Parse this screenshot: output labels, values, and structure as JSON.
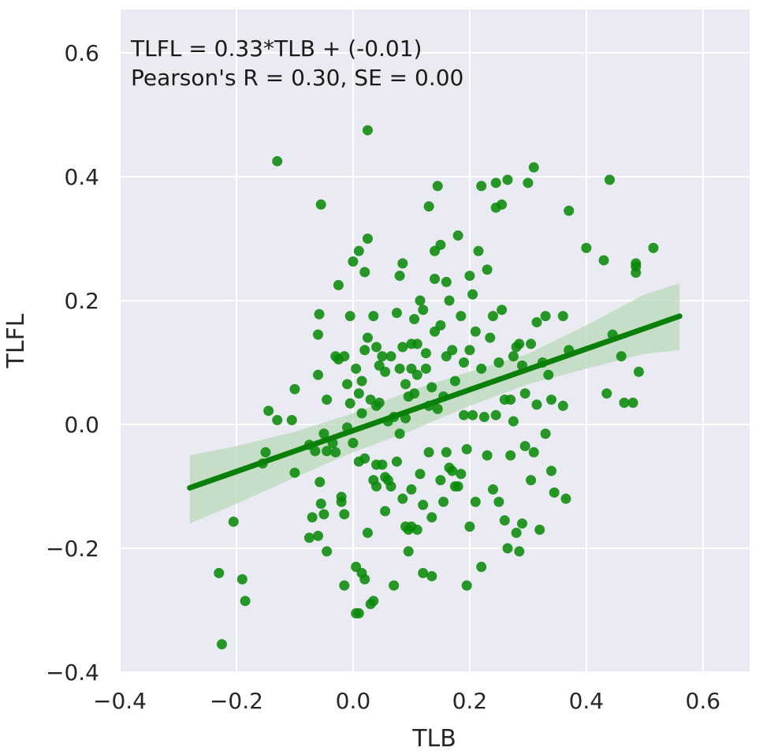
{
  "chart_data": {
    "type": "scatter",
    "xlabel": "TLB",
    "ylabel": "TLFL",
    "xlim": [
      -0.4,
      0.68
    ],
    "ylim": [
      -0.4,
      0.67
    ],
    "xticks": [
      "−0.4",
      "−0.2",
      "0.0",
      "0.2",
      "0.4",
      "0.6"
    ],
    "yticks": [
      "−0.4",
      "−0.2",
      "0.0",
      "0.2",
      "0.4",
      "0.6"
    ],
    "annotation": [
      "TLFL = 0.33*TLB + (-0.01)",
      "Pearson's R = 0.30, SE = 0.00"
    ],
    "grid": true,
    "colors": {
      "background": "#EAEAF2",
      "grid": "#FFFFFF",
      "points": "#0A8A0A",
      "line": "#0A800A",
      "band": "#B9D8B9"
    },
    "regression": {
      "slope": 0.33,
      "intercept": -0.01,
      "x_start": -0.28,
      "x_end": 0.56
    },
    "band": {
      "x": [
        -0.28,
        -0.2,
        -0.1,
        0.0,
        0.1,
        0.2,
        0.3,
        0.4,
        0.5,
        0.56
      ],
      "lower": [
        -0.16,
        -0.128,
        -0.086,
        -0.045,
        -0.01,
        0.03,
        0.065,
        0.09,
        0.114,
        0.12
      ],
      "upper": [
        -0.05,
        -0.035,
        -0.012,
        0.018,
        0.055,
        0.085,
        0.114,
        0.16,
        0.21,
        0.228
      ]
    },
    "points": [
      [
        -0.23,
        -0.24
      ],
      [
        -0.225,
        -0.355
      ],
      [
        -0.205,
        -0.157
      ],
      [
        -0.19,
        -0.25
      ],
      [
        -0.185,
        -0.285
      ],
      [
        -0.155,
        -0.063
      ],
      [
        -0.15,
        -0.045
      ],
      [
        -0.145,
        0.022
      ],
      [
        -0.13,
        0.425
      ],
      [
        -0.13,
        0.007
      ],
      [
        -0.105,
        0.007
      ],
      [
        -0.1,
        0.057
      ],
      [
        -0.1,
        -0.078
      ],
      [
        -0.075,
        -0.033
      ],
      [
        -0.075,
        -0.183
      ],
      [
        -0.07,
        -0.15
      ],
      [
        -0.065,
        -0.043
      ],
      [
        -0.06,
        -0.18
      ],
      [
        -0.06,
        0.08
      ],
      [
        -0.06,
        0.145
      ],
      [
        -0.058,
        0.178
      ],
      [
        -0.057,
        -0.093
      ],
      [
        -0.055,
        -0.128
      ],
      [
        -0.055,
        0.355
      ],
      [
        -0.05,
        -0.145
      ],
      [
        -0.05,
        -0.015
      ],
      [
        -0.045,
        -0.043
      ],
      [
        -0.045,
        0.04
      ],
      [
        -0.045,
        -0.205
      ],
      [
        -0.035,
        -0.03
      ],
      [
        -0.03,
        -0.045
      ],
      [
        -0.03,
        0.11
      ],
      [
        -0.025,
        0.105
      ],
      [
        -0.025,
        0.225
      ],
      [
        -0.02,
        -0.117
      ],
      [
        -0.02,
        -0.125
      ],
      [
        -0.015,
        -0.145
      ],
      [
        -0.015,
        -0.26
      ],
      [
        -0.015,
        0.11
      ],
      [
        -0.01,
        0.065
      ],
      [
        -0.01,
        -0.005
      ],
      [
        -0.005,
        0.034
      ],
      [
        -0.005,
        0.175
      ],
      [
        0.0,
        0.263
      ],
      [
        0.0,
        -0.03
      ],
      [
        0.005,
        0.09
      ],
      [
        0.005,
        -0.23
      ],
      [
        0.005,
        -0.305
      ],
      [
        0.01,
        0.28
      ],
      [
        0.01,
        -0.305
      ],
      [
        0.01,
        -0.06
      ],
      [
        0.01,
        0.05
      ],
      [
        0.015,
        -0.24
      ],
      [
        0.015,
        0.018
      ],
      [
        0.015,
        0.07
      ],
      [
        0.02,
        -0.25
      ],
      [
        0.02,
        0.246
      ],
      [
        0.02,
        -0.055
      ],
      [
        0.02,
        0.12
      ],
      [
        0.025,
        0.3
      ],
      [
        0.025,
        0.475
      ],
      [
        0.025,
        -0.175
      ],
      [
        0.025,
        0.14
      ],
      [
        0.03,
        -0.29
      ],
      [
        0.03,
        0.04
      ],
      [
        0.035,
        -0.285
      ],
      [
        0.035,
        -0.09
      ],
      [
        0.035,
        0.175
      ],
      [
        0.04,
        -0.1
      ],
      [
        0.04,
        0.03
      ],
      [
        0.04,
        -0.065
      ],
      [
        0.04,
        0.125
      ],
      [
        0.045,
        0.035
      ],
      [
        0.045,
        0.095
      ],
      [
        0.05,
        -0.065
      ],
      [
        0.05,
        0.11
      ],
      [
        0.055,
        -0.14
      ],
      [
        0.055,
        0.085
      ],
      [
        0.055,
        -0.085
      ],
      [
        0.06,
        -0.09
      ],
      [
        0.06,
        0.005
      ],
      [
        0.065,
        -0.1
      ],
      [
        0.065,
        0.11
      ],
      [
        0.07,
        0.012
      ],
      [
        0.07,
        -0.26
      ],
      [
        0.075,
        0.18
      ],
      [
        0.075,
        -0.06
      ],
      [
        0.08,
        -0.015
      ],
      [
        0.08,
        0.09
      ],
      [
        0.08,
        0.24
      ],
      [
        0.085,
        0.26
      ],
      [
        0.085,
        -0.12
      ],
      [
        0.085,
        0.125
      ],
      [
        0.09,
        -0.165
      ],
      [
        0.09,
        0.01
      ],
      [
        0.09,
        0.065
      ],
      [
        0.095,
        -0.205
      ],
      [
        0.095,
        -0.17
      ],
      [
        0.095,
        0.045
      ],
      [
        0.1,
        -0.165
      ],
      [
        0.1,
        0.13
      ],
      [
        0.1,
        0.09
      ],
      [
        0.1,
        -0.105
      ],
      [
        0.105,
        0.17
      ],
      [
        0.105,
        0.05
      ],
      [
        0.11,
        -0.17
      ],
      [
        0.11,
        0.13
      ],
      [
        0.11,
        0.08
      ],
      [
        0.115,
        0.2
      ],
      [
        0.115,
        -0.08
      ],
      [
        0.12,
        -0.13
      ],
      [
        0.12,
        0.185
      ],
      [
        0.12,
        -0.24
      ],
      [
        0.125,
        0.09
      ],
      [
        0.125,
        0.115
      ],
      [
        0.13,
        -0.045
      ],
      [
        0.13,
        0.352
      ],
      [
        0.13,
        0.03
      ],
      [
        0.135,
        -0.15
      ],
      [
        0.135,
        0.06
      ],
      [
        0.135,
        -0.245
      ],
      [
        0.14,
        0.28
      ],
      [
        0.14,
        0.235
      ],
      [
        0.14,
        0.15
      ],
      [
        0.145,
        0.385
      ],
      [
        0.145,
        0.025
      ],
      [
        0.15,
        0.16
      ],
      [
        0.15,
        0.29
      ],
      [
        0.15,
        -0.09
      ],
      [
        0.155,
        -0.125
      ],
      [
        0.155,
        0.045
      ],
      [
        0.16,
        0.23
      ],
      [
        0.16,
        0.11
      ],
      [
        0.16,
        -0.045
      ],
      [
        0.165,
        -0.07
      ],
      [
        0.165,
        0.2
      ],
      [
        0.17,
        -0.075
      ],
      [
        0.17,
        0.12
      ],
      [
        0.175,
        -0.1
      ],
      [
        0.175,
        0.07
      ],
      [
        0.18,
        -0.1
      ],
      [
        0.18,
        0.305
      ],
      [
        0.185,
        0.175
      ],
      [
        0.185,
        -0.08
      ],
      [
        0.19,
        0.015
      ],
      [
        0.19,
        0.1
      ],
      [
        0.195,
        -0.04
      ],
      [
        0.195,
        -0.26
      ],
      [
        0.2,
        0.24
      ],
      [
        0.2,
        -0.165
      ],
      [
        0.2,
        0.12
      ],
      [
        0.205,
        0.015
      ],
      [
        0.205,
        0.21
      ],
      [
        0.21,
        -0.125
      ],
      [
        0.21,
        0.15
      ],
      [
        0.215,
        0.28
      ],
      [
        0.22,
        -0.23
      ],
      [
        0.22,
        0.385
      ],
      [
        0.22,
        0.09
      ],
      [
        0.225,
        0.012
      ],
      [
        0.23,
        0.25
      ],
      [
        0.23,
        -0.05
      ],
      [
        0.235,
        0.14
      ],
      [
        0.24,
        0.175
      ],
      [
        0.24,
        -0.105
      ],
      [
        0.245,
        0.35
      ],
      [
        0.245,
        0.39
      ],
      [
        0.245,
        0.015
      ],
      [
        0.25,
        0.1
      ],
      [
        0.25,
        -0.125
      ],
      [
        0.255,
        0.185
      ],
      [
        0.255,
        0.355
      ],
      [
        0.26,
        0.04
      ],
      [
        0.26,
        -0.155
      ],
      [
        0.265,
        0.395
      ],
      [
        0.265,
        -0.2
      ],
      [
        0.27,
        0.04
      ],
      [
        0.27,
        -0.05
      ],
      [
        0.275,
        0.11
      ],
      [
        0.275,
        0.005
      ],
      [
        0.28,
        0.125
      ],
      [
        0.28,
        -0.175
      ],
      [
        0.285,
        0.13
      ],
      [
        0.285,
        -0.205
      ],
      [
        0.29,
        0.095
      ],
      [
        0.29,
        -0.16
      ],
      [
        0.295,
        0.05
      ],
      [
        0.295,
        -0.035
      ],
      [
        0.3,
        0.39
      ],
      [
        0.305,
        -0.09
      ],
      [
        0.305,
        0.13
      ],
      [
        0.31,
        0.415
      ],
      [
        0.31,
        -0.045
      ],
      [
        0.315,
        0.165
      ],
      [
        0.315,
        0.032
      ],
      [
        0.32,
        -0.17
      ],
      [
        0.325,
        0.1
      ],
      [
        0.33,
        -0.015
      ],
      [
        0.33,
        0.175
      ],
      [
        0.335,
        0.08
      ],
      [
        0.34,
        0.04
      ],
      [
        0.34,
        -0.075
      ],
      [
        0.345,
        -0.11
      ],
      [
        0.36,
        0.175
      ],
      [
        0.36,
        0.03
      ],
      [
        0.365,
        -0.12
      ],
      [
        0.37,
        0.345
      ],
      [
        0.37,
        0.12
      ],
      [
        0.4,
        0.285
      ],
      [
        0.43,
        0.265
      ],
      [
        0.435,
        0.05
      ],
      [
        0.44,
        0.395
      ],
      [
        0.445,
        0.145
      ],
      [
        0.46,
        0.11
      ],
      [
        0.465,
        0.035
      ],
      [
        0.48,
        0.035
      ],
      [
        0.485,
        0.255
      ],
      [
        0.485,
        0.26
      ],
      [
        0.485,
        0.245
      ],
      [
        0.49,
        0.085
      ],
      [
        0.515,
        0.285
      ]
    ]
  }
}
